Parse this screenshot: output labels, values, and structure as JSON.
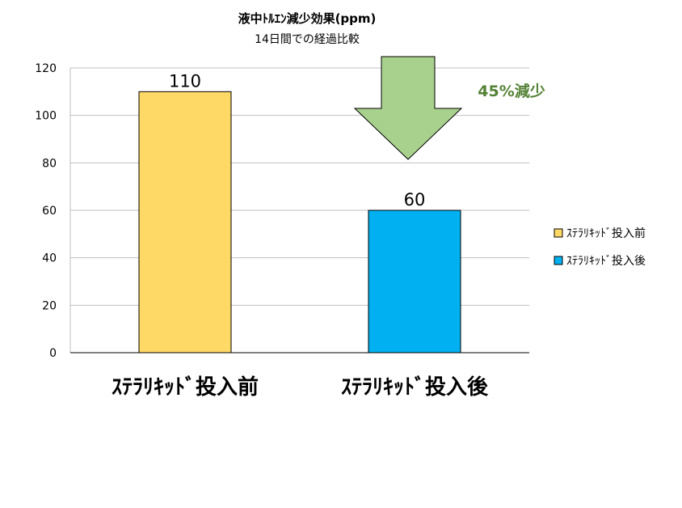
{
  "chart_data": {
    "type": "bar",
    "title": "液中ﾄﾙｴﾝ減少効果(ppm)",
    "subtitle": "14日間での経過比較",
    "categories": [
      "ｽﾃﾗﾘｷｯﾄﾞ投入前",
      "ｽﾃﾗﾘｷｯﾄﾞ投入後"
    ],
    "series": [
      {
        "name": "ｽﾃﾗﾘｷｯﾄﾞ投入前",
        "color": "#FFD966",
        "values": [
          110,
          null
        ]
      },
      {
        "name": "ｽﾃﾗﾘｷｯﾄﾞ投入後",
        "color": "#00B0F0",
        "values": [
          null,
          60
        ]
      }
    ],
    "ylim": [
      0,
      120
    ],
    "yticks": [
      0,
      20,
      40,
      60,
      80,
      100,
      120
    ],
    "grid": true,
    "legend_position": "right",
    "annotation": {
      "text": "45%減少",
      "color": "#548235",
      "arrow_color": "#A9D18E",
      "arrow_direction": "down"
    }
  }
}
